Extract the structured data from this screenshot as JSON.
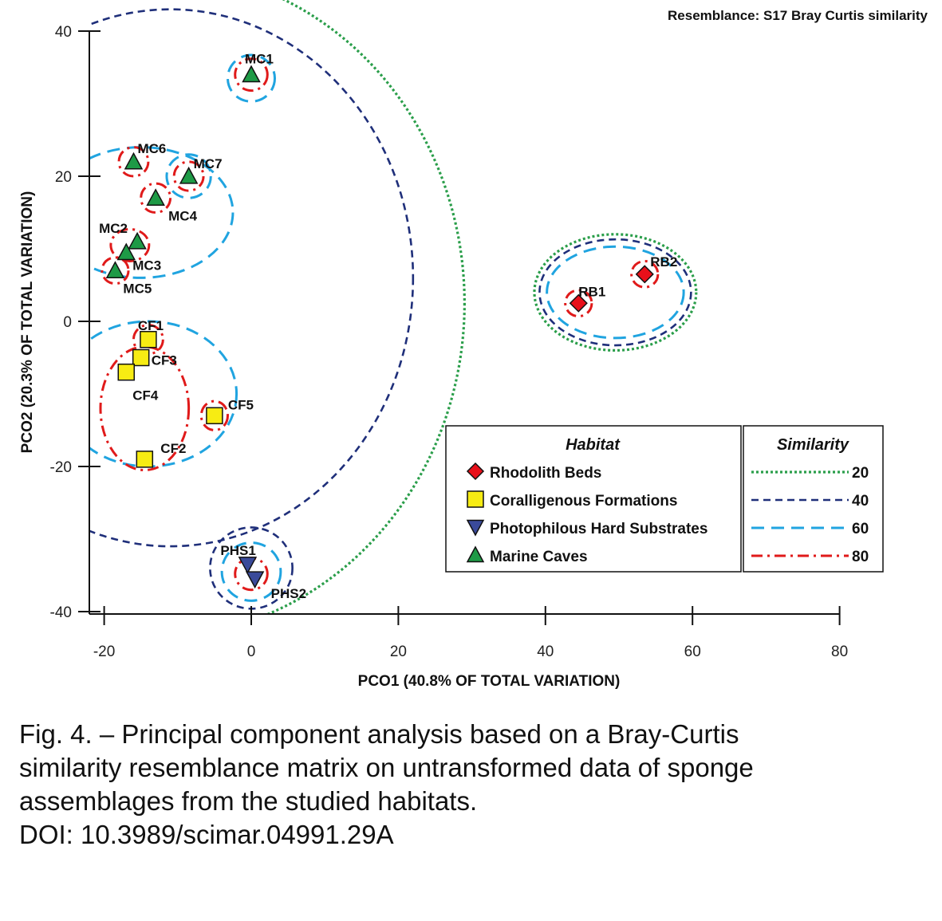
{
  "chart_data": {
    "type": "scatter",
    "note": "Resemblance: S17 Bray Curtis similarity",
    "xlabel": "PCO1 (40.8% OF TOTAL VARIATION)",
    "ylabel": "PCO2 (20.3% OF TOTAL VARIATION)",
    "xlim": [
      -21,
      80
    ],
    "ylim": [
      -41,
      40
    ],
    "xticks": [
      -20,
      0,
      20,
      40,
      60,
      80
    ],
    "yticks": [
      40,
      20,
      0,
      -20,
      -40
    ],
    "grid": false,
    "legend_position": "bottom-right",
    "habitats": [
      {
        "name": "Rhodolith Beds",
        "marker": "diamond",
        "color": "#e8101a"
      },
      {
        "name": "Coralligenous Formations",
        "marker": "square",
        "color": "#f7ec13"
      },
      {
        "name": "Photophilous Hard Substrates",
        "marker": "triangle-down",
        "color": "#3a4a9a"
      },
      {
        "name": "Marine Caves",
        "marker": "triangle-up",
        "color": "#1e9a46"
      }
    ],
    "similarity_levels": [
      {
        "value": "20",
        "style": "dotted",
        "color": "#2a9e4a"
      },
      {
        "value": "40",
        "style": "dashed",
        "color": "#1f2f7a"
      },
      {
        "value": "60",
        "style": "long-dash",
        "color": "#20a4e0"
      },
      {
        "value": "80",
        "style": "dash-dot",
        "color": "#e01a1a"
      }
    ],
    "points": [
      {
        "label": "MC1",
        "x": 0,
        "y": 34,
        "habitat": 3
      },
      {
        "label": "MC6",
        "x": -16,
        "y": 22,
        "habitat": 3
      },
      {
        "label": "MC7",
        "x": -8.5,
        "y": 20,
        "habitat": 3
      },
      {
        "label": "MC4",
        "x": -13,
        "y": 17,
        "habitat": 3
      },
      {
        "label": "MC2",
        "x": -15.5,
        "y": 11,
        "habitat": 3
      },
      {
        "label": "MC3",
        "x": -17,
        "y": 9.5,
        "habitat": 3
      },
      {
        "label": "MC5",
        "x": -18.5,
        "y": 7,
        "habitat": 3
      },
      {
        "label": "CF1",
        "x": -14,
        "y": -2.5,
        "habitat": 1
      },
      {
        "label": "CF3",
        "x": -15,
        "y": -5,
        "habitat": 1
      },
      {
        "label": "CF4",
        "x": -17,
        "y": -7,
        "habitat": 1
      },
      {
        "label": "CF5",
        "x": -5,
        "y": -13,
        "habitat": 1
      },
      {
        "label": "CF2",
        "x": -14.5,
        "y": -19,
        "habitat": 1
      },
      {
        "label": "RB1",
        "x": 44.5,
        "y": 2.5,
        "habitat": 0
      },
      {
        "label": "RB2",
        "x": 53.5,
        "y": 6.5,
        "habitat": 0
      },
      {
        "label": "PHS1",
        "x": -0.5,
        "y": -33.5,
        "habitat": 2
      },
      {
        "label": "PHS2",
        "x": 0.5,
        "y": -35.5,
        "habitat": 2
      }
    ],
    "clusters": [
      {
        "level": 0,
        "cx": -13,
        "cy": 2.5,
        "rx": 42,
        "ry": 46
      },
      {
        "level": 1,
        "cx": -11,
        "cy": 6,
        "rx": 33,
        "ry": 37
      },
      {
        "level": 2,
        "cx": -15,
        "cy": 15,
        "rx": 12.5,
        "ry": 9
      },
      {
        "level": 2,
        "cx": 0,
        "cy": 33.5,
        "rx": 3.2,
        "ry": 3.2
      },
      {
        "level": 2,
        "cx": -8.5,
        "cy": 20,
        "rx": 3,
        "ry": 3
      },
      {
        "level": 2,
        "cx": -14,
        "cy": -10,
        "rx": 12,
        "ry": 10
      },
      {
        "level": 3,
        "cx": 0,
        "cy": 34,
        "rx": 2.2,
        "ry": 2.2
      },
      {
        "level": 3,
        "cx": -16,
        "cy": 22,
        "rx": 2,
        "ry": 2
      },
      {
        "level": 3,
        "cx": -8.5,
        "cy": 20,
        "rx": 2,
        "ry": 2
      },
      {
        "level": 3,
        "cx": -13,
        "cy": 17,
        "rx": 2,
        "ry": 2
      },
      {
        "level": 3,
        "cx": -16.5,
        "cy": 10.5,
        "rx": 2.6,
        "ry": 2.2
      },
      {
        "level": 3,
        "cx": -18.5,
        "cy": 7,
        "rx": 1.8,
        "ry": 1.8
      },
      {
        "level": 3,
        "cx": -14,
        "cy": -2.5,
        "rx": 2,
        "ry": 2
      },
      {
        "level": 3,
        "cx": -5,
        "cy": -13,
        "rx": 1.8,
        "ry": 2
      },
      {
        "level": 3,
        "cx": -14.5,
        "cy": -12,
        "rx": 6,
        "ry": 8.5
      },
      {
        "level": 0,
        "cx": 49.5,
        "cy": 4,
        "rx": 11,
        "ry": 8
      },
      {
        "level": 1,
        "cx": 49.5,
        "cy": 4,
        "rx": 10.3,
        "ry": 7.3
      },
      {
        "level": 2,
        "cx": 49.5,
        "cy": 4,
        "rx": 9.3,
        "ry": 6.3
      },
      {
        "level": 3,
        "cx": 44.5,
        "cy": 2.5,
        "rx": 1.8,
        "ry": 1.8
      },
      {
        "level": 3,
        "cx": 53.5,
        "cy": 6.5,
        "rx": 1.8,
        "ry": 1.8
      },
      {
        "level": 1,
        "cx": 0,
        "cy": -34,
        "rx": 5.6,
        "ry": 5.6
      },
      {
        "level": 2,
        "cx": 0,
        "cy": -34.5,
        "rx": 4,
        "ry": 4
      },
      {
        "level": 3,
        "cx": 0,
        "cy": -34.8,
        "rx": 2.2,
        "ry": 2.2
      }
    ]
  },
  "legend": {
    "habitat_header": "Habitat",
    "similarity_header": "Similarity"
  },
  "caption": {
    "line1": "Fig. 4. – Principal component analysis based on a Bray-Curtis",
    "line2": "similarity resemblance matrix on untransformed data of sponge",
    "line3": "assemblages from the studied habitats.",
    "line4": "DOI: 10.3989/scimar.04991.29A"
  }
}
